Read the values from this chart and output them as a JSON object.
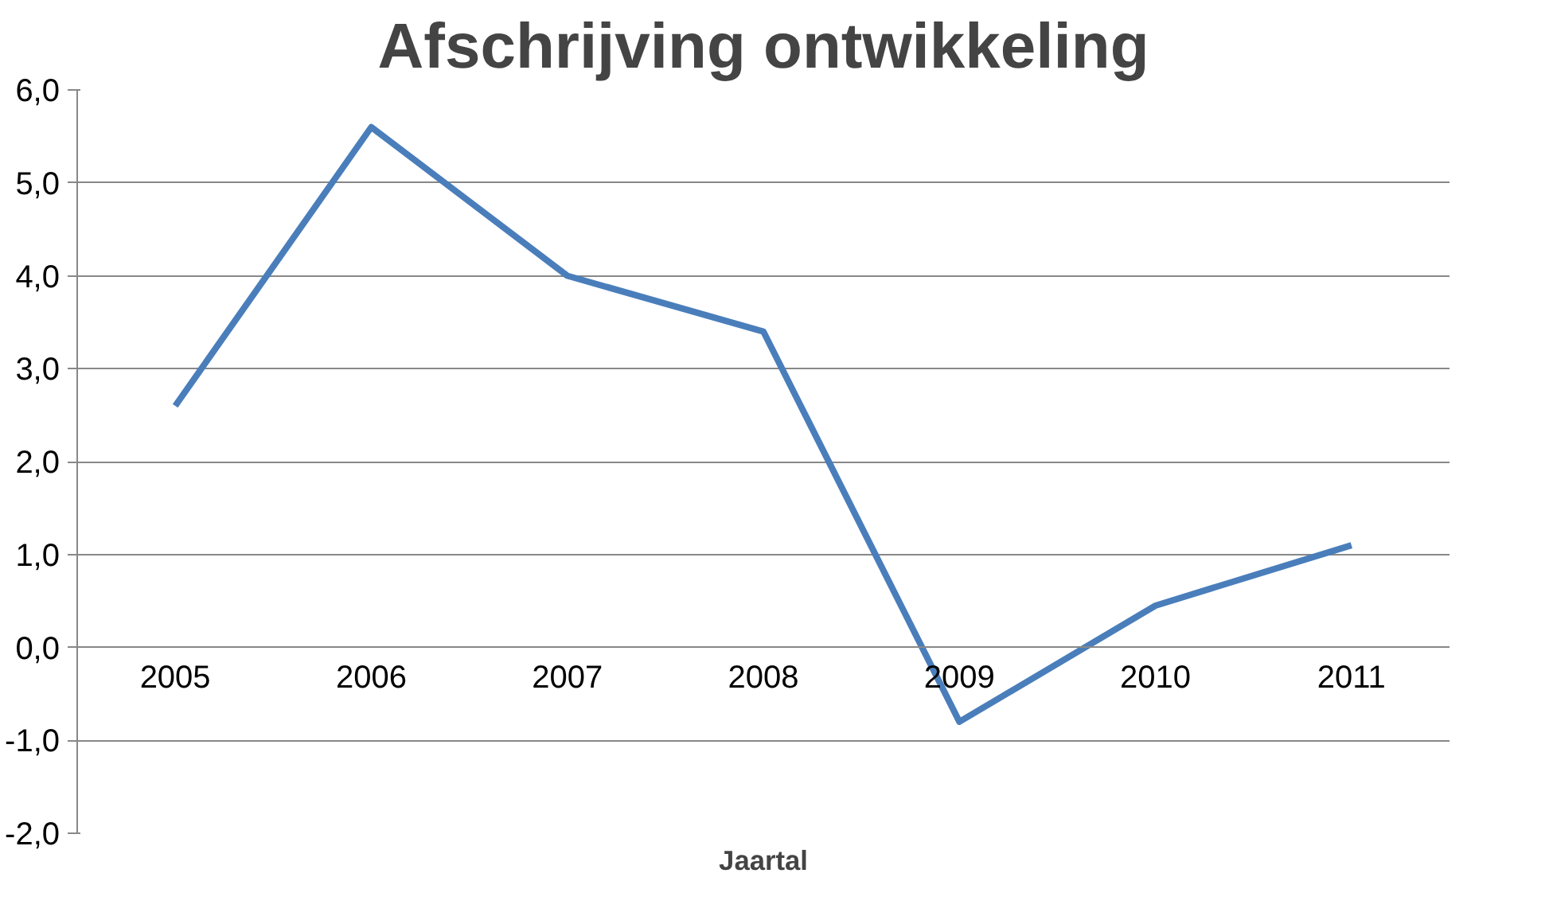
{
  "chart_data": {
    "type": "line",
    "title": "Afschrijving ontwikkeling",
    "xlabel": "Jaartal",
    "categories": [
      "2005",
      "2006",
      "2007",
      "2008",
      "2009",
      "2010",
      "2011"
    ],
    "series": [
      {
        "color": "#4a7ebb",
        "values": [
          2.6,
          5.6,
          4.0,
          3.4,
          -0.8,
          0.45,
          1.1
        ]
      }
    ],
    "ylim": [
      -2,
      6
    ],
    "yticks": [
      {
        "value": -2,
        "label": "-2,0"
      },
      {
        "value": -1,
        "label": "-1,0"
      },
      {
        "value": 0,
        "label": "0,0"
      },
      {
        "value": 1,
        "label": "1,0"
      },
      {
        "value": 2,
        "label": "2,0"
      },
      {
        "value": 3,
        "label": "3,0"
      },
      {
        "value": 4,
        "label": "4,0"
      },
      {
        "value": 5,
        "label": "5,0"
      },
      {
        "value": 6,
        "label": "6,0"
      }
    ],
    "grid": "y",
    "marker": "none",
    "line_style": "solid"
  }
}
